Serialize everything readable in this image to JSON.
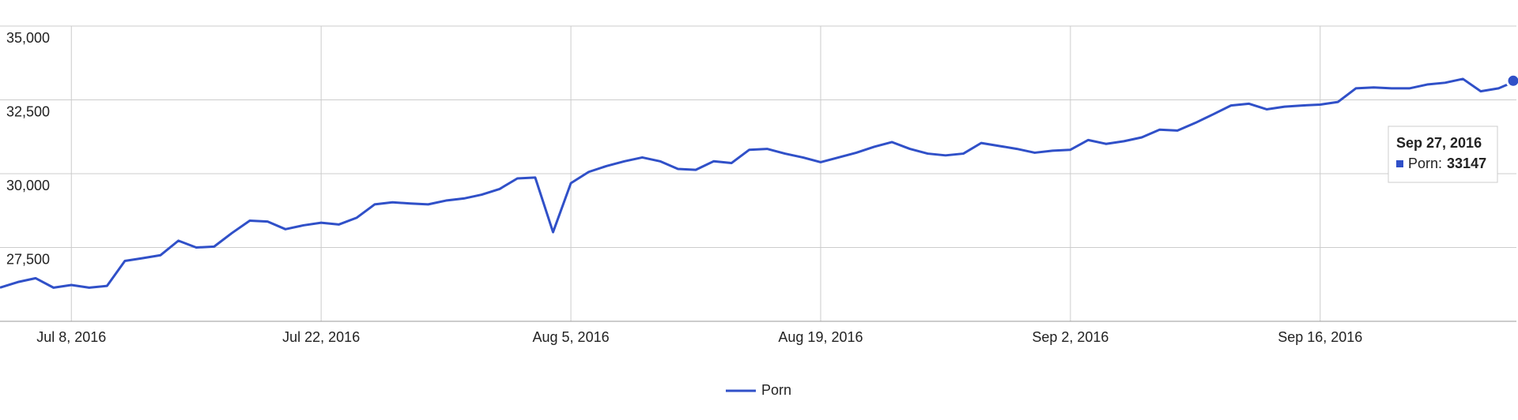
{
  "chart_data": {
    "type": "line",
    "x": [
      "2016-07-04",
      "2016-07-05",
      "2016-07-06",
      "2016-07-07",
      "2016-07-08",
      "2016-07-09",
      "2016-07-10",
      "2016-07-11",
      "2016-07-12",
      "2016-07-13",
      "2016-07-14",
      "2016-07-15",
      "2016-07-16",
      "2016-07-17",
      "2016-07-18",
      "2016-07-19",
      "2016-07-20",
      "2016-07-21",
      "2016-07-22",
      "2016-07-23",
      "2016-07-24",
      "2016-07-25",
      "2016-07-26",
      "2016-07-27",
      "2016-07-28",
      "2016-07-29",
      "2016-07-30",
      "2016-07-31",
      "2016-08-01",
      "2016-08-02",
      "2016-08-03",
      "2016-08-04",
      "2016-08-05",
      "2016-08-06",
      "2016-08-07",
      "2016-08-08",
      "2016-08-09",
      "2016-08-10",
      "2016-08-11",
      "2016-08-12",
      "2016-08-13",
      "2016-08-14",
      "2016-08-15",
      "2016-08-16",
      "2016-08-17",
      "2016-08-18",
      "2016-08-19",
      "2016-08-20",
      "2016-08-21",
      "2016-08-22",
      "2016-08-23",
      "2016-08-24",
      "2016-08-25",
      "2016-08-26",
      "2016-08-27",
      "2016-08-28",
      "2016-08-29",
      "2016-08-30",
      "2016-08-31",
      "2016-09-01",
      "2016-09-02",
      "2016-09-03",
      "2016-09-04",
      "2016-09-05",
      "2016-09-06",
      "2016-09-07",
      "2016-09-08",
      "2016-09-09",
      "2016-09-10",
      "2016-09-11",
      "2016-09-12",
      "2016-09-13",
      "2016-09-14",
      "2016-09-15",
      "2016-09-16",
      "2016-09-17",
      "2016-09-18",
      "2016-09-19",
      "2016-09-20",
      "2016-09-21",
      "2016-09-22",
      "2016-09-23",
      "2016-09-24",
      "2016-09-25",
      "2016-09-26",
      "2016-09-27"
    ],
    "series": [
      {
        "name": "Porn",
        "color": "#3050c8",
        "values": [
          26140,
          26330,
          26460,
          26140,
          26230,
          26140,
          26200,
          27045,
          27140,
          27240,
          27730,
          27500,
          27530,
          27990,
          28410,
          28380,
          28120,
          28250,
          28340,
          28280,
          28510,
          28960,
          29030,
          28990,
          28960,
          29090,
          29160,
          29290,
          29480,
          29840,
          29870,
          28020,
          29680,
          30060,
          30260,
          30420,
          30550,
          30420,
          30160,
          30130,
          30420,
          30360,
          30810,
          30840,
          30680,
          30550,
          30390,
          30550,
          30710,
          30910,
          31070,
          30840,
          30680,
          30620,
          30680,
          31040,
          30940,
          30840,
          30710,
          30780,
          30810,
          31140,
          31010,
          31100,
          31230,
          31490,
          31460,
          31720,
          32010,
          32310,
          32370,
          32180,
          32270,
          32310,
          32340,
          32430,
          32890,
          32920,
          32890,
          32890,
          33020,
          33080,
          33210,
          32790,
          32890,
          33147
        ]
      }
    ],
    "xlim": [
      "2016-07-04",
      "2016-09-27"
    ],
    "xticks": [
      {
        "value": "2016-07-08",
        "label": "Jul 8, 2016"
      },
      {
        "value": "2016-07-22",
        "label": "Jul 22, 2016"
      },
      {
        "value": "2016-08-05",
        "label": "Aug 5, 2016"
      },
      {
        "value": "2016-08-19",
        "label": "Aug 19, 2016"
      },
      {
        "value": "2016-09-02",
        "label": "Sep 2, 2016"
      },
      {
        "value": "2016-09-16",
        "label": "Sep 16, 2016"
      }
    ],
    "ylim": [
      25000,
      35000
    ],
    "yticks": [
      {
        "value": 27500,
        "label": "27,500"
      },
      {
        "value": 30000,
        "label": "30,000"
      },
      {
        "value": 32500,
        "label": "32,500"
      },
      {
        "value": 35000,
        "label": "35,000"
      }
    ],
    "grid": true,
    "legend": "bottom",
    "tooltip": {
      "date": "Sep 27, 2016",
      "label": "Porn:",
      "value": 33147
    }
  }
}
